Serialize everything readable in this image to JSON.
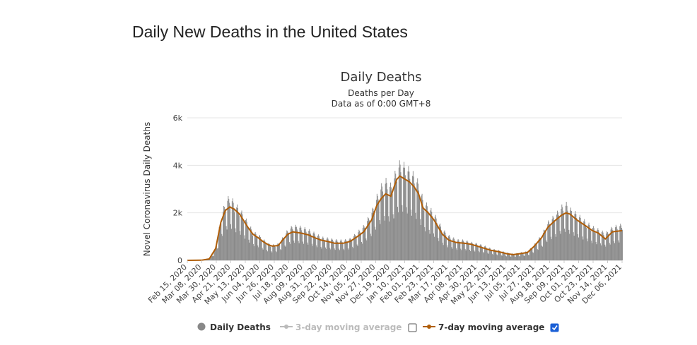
{
  "page": {
    "title": "Daily New Deaths in the United States"
  },
  "chart_data": {
    "type": "bar",
    "title": "Daily Deaths",
    "subtitle_lines": [
      "Deaths per Day",
      "Data as of 0:00 GMT+8"
    ],
    "ylabel": "Novel Coronavirus Daily Deaths",
    "xlabel": "",
    "ylim": [
      0,
      6000
    ],
    "y_ticks": [
      0,
      2000,
      4000,
      6000
    ],
    "y_tick_labels": [
      "0",
      "2k",
      "4k",
      "6k"
    ],
    "x_range": [
      "2020-02-15",
      "2021-12-21"
    ],
    "x_tick_labels": [
      "Feb 15, 2020",
      "Mar 08, 2020",
      "Mar 30, 2020",
      "Apr 21, 2020",
      "May 13, 2020",
      "Jun 04, 2020",
      "Jun 26, 2020",
      "Jul 18, 2020",
      "Aug 09, 2020",
      "Aug 31, 2020",
      "Sep 22, 2020",
      "Oct 14, 2020",
      "Nov 05, 2020",
      "Nov 27, 2020",
      "Dec 19, 2020",
      "Jan 10, 2021",
      "Feb 01, 2021",
      "Feb 23, 2021",
      "Mar 17, 2021",
      "Apr 08, 2021",
      "Apr 30, 2021",
      "May 22, 2021",
      "Jun 13, 2021",
      "Jul 05, 2021",
      "Jul 27, 2021",
      "Aug 18, 2021",
      "Sep 09, 2021",
      "Oct 01, 2021",
      "Oct 23, 2021",
      "Nov 14, 2021",
      "Dec 06, 2021"
    ],
    "grid": true,
    "legend_position": "bottom",
    "series": [
      {
        "name": "Daily Deaths",
        "type": "bar",
        "color": "#888888",
        "visible": true,
        "points": [
          [
            "2020-02-15",
            0
          ],
          [
            "2020-03-08",
            5
          ],
          [
            "2020-03-20",
            60
          ],
          [
            "2020-03-30",
            500
          ],
          [
            "2020-04-07",
            1700
          ],
          [
            "2020-04-14",
            2300
          ],
          [
            "2020-04-21",
            2500
          ],
          [
            "2020-04-28",
            2200
          ],
          [
            "2020-05-06",
            2000
          ],
          [
            "2020-05-13",
            1700
          ],
          [
            "2020-05-20",
            1400
          ],
          [
            "2020-05-27",
            1100
          ],
          [
            "2020-06-04",
            1000
          ],
          [
            "2020-06-12",
            800
          ],
          [
            "2020-06-20",
            650
          ],
          [
            "2020-06-26",
            600
          ],
          [
            "2020-07-05",
            650
          ],
          [
            "2020-07-12",
            900
          ],
          [
            "2020-07-20",
            1200
          ],
          [
            "2020-07-28",
            1350
          ],
          [
            "2020-08-09",
            1300
          ],
          [
            "2020-08-20",
            1200
          ],
          [
            "2020-08-31",
            1050
          ],
          [
            "2020-09-10",
            900
          ],
          [
            "2020-09-22",
            850
          ],
          [
            "2020-10-01",
            800
          ],
          [
            "2020-10-14",
            780
          ],
          [
            "2020-10-25",
            850
          ],
          [
            "2020-11-05",
            1100
          ],
          [
            "2020-11-15",
            1350
          ],
          [
            "2020-11-27",
            1900
          ],
          [
            "2020-12-05",
            2500
          ],
          [
            "2020-12-12",
            2900
          ],
          [
            "2020-12-19",
            3100
          ],
          [
            "2020-12-27",
            2900
          ],
          [
            "2021-01-05",
            3600
          ],
          [
            "2021-01-10",
            3800
          ],
          [
            "2021-01-16",
            3700
          ],
          [
            "2021-01-25",
            3500
          ],
          [
            "2021-02-01",
            3300
          ],
          [
            "2021-02-08",
            3000
          ],
          [
            "2021-02-15",
            2300
          ],
          [
            "2021-02-23",
            2100
          ],
          [
            "2021-03-04",
            1800
          ],
          [
            "2021-03-17",
            1200
          ],
          [
            "2021-03-27",
            950
          ],
          [
            "2021-04-08",
            800
          ],
          [
            "2021-04-20",
            780
          ],
          [
            "2021-04-30",
            700
          ],
          [
            "2021-05-10",
            650
          ],
          [
            "2021-05-22",
            550
          ],
          [
            "2021-06-01",
            450
          ],
          [
            "2021-06-13",
            380
          ],
          [
            "2021-06-25",
            300
          ],
          [
            "2021-07-05",
            250
          ],
          [
            "2021-07-15",
            300
          ],
          [
            "2021-07-27",
            350
          ],
          [
            "2021-08-06",
            600
          ],
          [
            "2021-08-18",
            1000
          ],
          [
            "2021-08-28",
            1500
          ],
          [
            "2021-09-09",
            1800
          ],
          [
            "2021-09-18",
            2100
          ],
          [
            "2021-09-25",
            2200
          ],
          [
            "2021-10-01",
            2000
          ],
          [
            "2021-10-12",
            1800
          ],
          [
            "2021-10-23",
            1550
          ],
          [
            "2021-11-05",
            1300
          ],
          [
            "2021-11-14",
            1200
          ],
          [
            "2021-11-25",
            1050
          ],
          [
            "2021-12-06",
            1300
          ],
          [
            "2021-12-21",
            1400
          ]
        ]
      },
      {
        "name": "3-day moving average",
        "type": "line",
        "color": "#bbbbbb",
        "visible": false
      },
      {
        "name": "7-day moving average",
        "type": "line",
        "color": "#b05e08",
        "visible": true,
        "points": [
          [
            "2020-02-15",
            0
          ],
          [
            "2020-03-08",
            5
          ],
          [
            "2020-03-20",
            60
          ],
          [
            "2020-03-30",
            500
          ],
          [
            "2020-04-07",
            1600
          ],
          [
            "2020-04-14",
            2100
          ],
          [
            "2020-04-21",
            2250
          ],
          [
            "2020-04-28",
            2150
          ],
          [
            "2020-05-06",
            1950
          ],
          [
            "2020-05-13",
            1650
          ],
          [
            "2020-05-20",
            1350
          ],
          [
            "2020-05-27",
            1100
          ],
          [
            "2020-06-04",
            950
          ],
          [
            "2020-06-12",
            780
          ],
          [
            "2020-06-20",
            650
          ],
          [
            "2020-06-26",
            600
          ],
          [
            "2020-07-05",
            620
          ],
          [
            "2020-07-12",
            850
          ],
          [
            "2020-07-20",
            1100
          ],
          [
            "2020-07-28",
            1200
          ],
          [
            "2020-08-09",
            1150
          ],
          [
            "2020-08-20",
            1080
          ],
          [
            "2020-08-31",
            950
          ],
          [
            "2020-09-10",
            850
          ],
          [
            "2020-09-22",
            780
          ],
          [
            "2020-10-01",
            720
          ],
          [
            "2020-10-14",
            720
          ],
          [
            "2020-10-25",
            800
          ],
          [
            "2020-11-05",
            1000
          ],
          [
            "2020-11-15",
            1200
          ],
          [
            "2020-11-27",
            1700
          ],
          [
            "2020-12-05",
            2300
          ],
          [
            "2020-12-12",
            2600
          ],
          [
            "2020-12-19",
            2800
          ],
          [
            "2020-12-27",
            2700
          ],
          [
            "2021-01-05",
            3400
          ],
          [
            "2021-01-10",
            3550
          ],
          [
            "2021-01-16",
            3450
          ],
          [
            "2021-01-25",
            3300
          ],
          [
            "2021-02-01",
            3100
          ],
          [
            "2021-02-08",
            2800
          ],
          [
            "2021-02-15",
            2200
          ],
          [
            "2021-02-23",
            2000
          ],
          [
            "2021-03-04",
            1700
          ],
          [
            "2021-03-17",
            1100
          ],
          [
            "2021-03-27",
            850
          ],
          [
            "2021-04-08",
            750
          ],
          [
            "2021-04-20",
            720
          ],
          [
            "2021-04-30",
            680
          ],
          [
            "2021-05-10",
            600
          ],
          [
            "2021-05-22",
            500
          ],
          [
            "2021-06-01",
            420
          ],
          [
            "2021-06-13",
            360
          ],
          [
            "2021-06-25",
            280
          ],
          [
            "2021-07-05",
            240
          ],
          [
            "2021-07-15",
            280
          ],
          [
            "2021-07-27",
            330
          ],
          [
            "2021-08-06",
            580
          ],
          [
            "2021-08-18",
            950
          ],
          [
            "2021-08-28",
            1400
          ],
          [
            "2021-09-09",
            1700
          ],
          [
            "2021-09-18",
            1900
          ],
          [
            "2021-09-25",
            2000
          ],
          [
            "2021-10-01",
            1950
          ],
          [
            "2021-10-12",
            1700
          ],
          [
            "2021-10-23",
            1500
          ],
          [
            "2021-11-05",
            1250
          ],
          [
            "2021-11-14",
            1150
          ],
          [
            "2021-11-25",
            900
          ],
          [
            "2021-12-06",
            1200
          ],
          [
            "2021-12-21",
            1250
          ]
        ]
      }
    ]
  },
  "legend": {
    "items": [
      {
        "label": "Daily Deaths",
        "color": "#333333",
        "marker_color": "#888888",
        "checkbox": null
      },
      {
        "label": "3-day moving average",
        "color": "#bbbbbb",
        "marker_color": "#bbbbbb",
        "checkbox": false
      },
      {
        "label": "7-day moving average",
        "color": "#333333",
        "marker_color": "#b05e08",
        "checkbox": true
      }
    ],
    "checkbox_checked_color": "#1a5fd6"
  }
}
